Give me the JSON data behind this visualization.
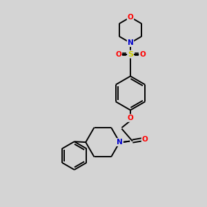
{
  "bg_color": "#d4d4d4",
  "line_color": "#000000",
  "bond_width": 1.4,
  "atom_colors": {
    "O": "#ff0000",
    "N": "#0000cc",
    "S": "#cccc00",
    "C": "#000000"
  },
  "figsize": [
    3.0,
    3.0
  ],
  "dpi": 100
}
